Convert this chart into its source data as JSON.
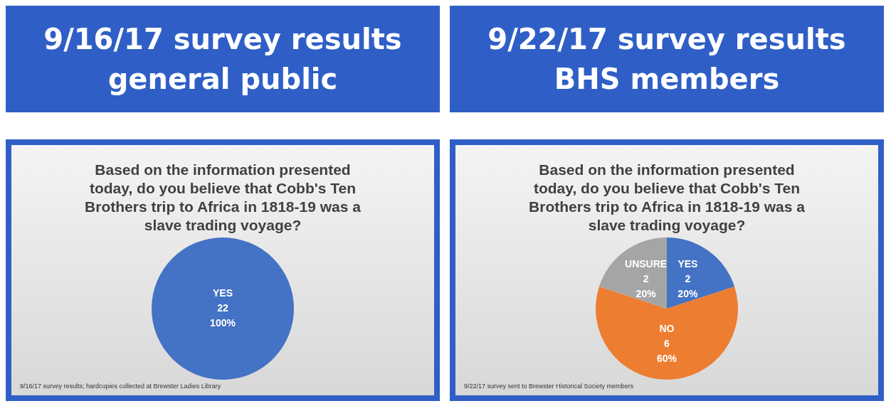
{
  "chart_data": [
    {
      "type": "pie",
      "title": "9/16/17 survey results\ngeneral public",
      "subtitle": "Based on the information presented today, do you believe that Cobb's Ten Brothers trip to Africa in 1818-19 was a slave trading voyage?",
      "categories": [
        "YES"
      ],
      "values": [
        100
      ],
      "colors": [
        "#4472c4"
      ],
      "value_labels": [
        "100%"
      ],
      "legend": false,
      "annotations": [
        {
          "text": "22",
          "x": "YES"
        },
        "9/16/17 survey results; hardcopies collected at Brewster Ladies Library"
      ]
    },
    {
      "type": "pie",
      "title": "9/22/17 survey results\nBHS members",
      "subtitle": "Based on the information presented today, do you believe that Cobb's Ten Brothers trip to Africa in 1818-19 was a slave trading voyage?",
      "categories": [
        "YES",
        "NO",
        "UNSURE"
      ],
      "values": [
        20,
        60,
        20
      ],
      "colors": [
        "#4472c4",
        "#ed7d31",
        "#a5a5a5"
      ],
      "value_labels": [
        "20%",
        "60%",
        "20%"
      ],
      "legend": false,
      "annotations": [
        {
          "text": "2",
          "x": "YES"
        },
        {
          "text": "6",
          "x": "NO"
        },
        {
          "text": "2",
          "x": "UNSURE"
        },
        "9/22/17 survey sent to Brewster Historical Society members"
      ]
    }
  ]
}
